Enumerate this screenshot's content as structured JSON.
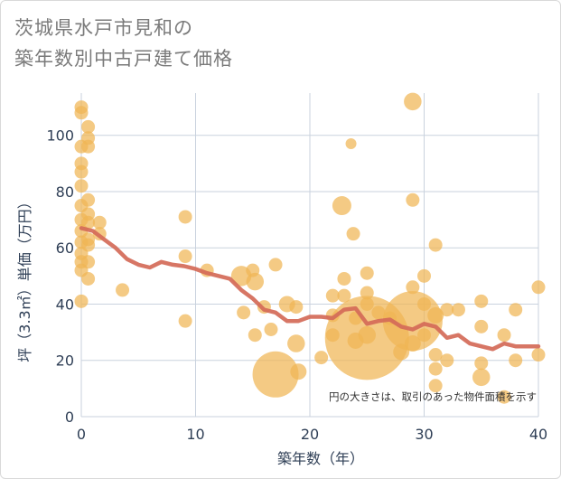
{
  "title_line1": "茨城県水戸市見和の",
  "title_line2": "築年数別中古戸建て価格",
  "colors": {
    "bubble": "#f0b555",
    "line": "#d46a58",
    "grid": "#c9d2de",
    "axis_text": "#2f3f56"
  },
  "chart_data": {
    "type": "scatter",
    "xlabel": "築年数（年）",
    "ylabel": "坪（3.3㎡）単価（万円）",
    "xlim": [
      0,
      40
    ],
    "ylim": [
      0,
      115
    ],
    "x_ticks": [
      0,
      10,
      20,
      30,
      40
    ],
    "y_ticks": [
      0,
      20,
      40,
      60,
      80,
      100
    ],
    "grid": true,
    "annotation": "円の大きさは、取引のあった物件面積を示す",
    "bubbles": [
      {
        "x": 0,
        "y": 110,
        "s": 1
      },
      {
        "x": 0,
        "y": 108,
        "s": 1
      },
      {
        "x": 0,
        "y": 96,
        "s": 1
      },
      {
        "x": 0,
        "y": 90,
        "s": 1
      },
      {
        "x": 0,
        "y": 87,
        "s": 1
      },
      {
        "x": 0,
        "y": 82,
        "s": 1
      },
      {
        "x": 0,
        "y": 75,
        "s": 1
      },
      {
        "x": 0,
        "y": 70,
        "s": 1
      },
      {
        "x": 0,
        "y": 66,
        "s": 1
      },
      {
        "x": 0,
        "y": 62,
        "s": 1
      },
      {
        "x": 0,
        "y": 58,
        "s": 1
      },
      {
        "x": 0,
        "y": 55,
        "s": 1
      },
      {
        "x": 0,
        "y": 52,
        "s": 1
      },
      {
        "x": 0,
        "y": 41,
        "s": 1
      },
      {
        "x": 0.6,
        "y": 103,
        "s": 1
      },
      {
        "x": 0.6,
        "y": 99,
        "s": 1
      },
      {
        "x": 0.6,
        "y": 96,
        "s": 1
      },
      {
        "x": 0.6,
        "y": 77,
        "s": 1
      },
      {
        "x": 0.6,
        "y": 72,
        "s": 1
      },
      {
        "x": 0.6,
        "y": 69,
        "s": 1
      },
      {
        "x": 0.6,
        "y": 63,
        "s": 1
      },
      {
        "x": 0.6,
        "y": 61,
        "s": 1
      },
      {
        "x": 0.6,
        "y": 55,
        "s": 1
      },
      {
        "x": 0.6,
        "y": 49,
        "s": 1
      },
      {
        "x": 1.6,
        "y": 69,
        "s": 1
      },
      {
        "x": 1.6,
        "y": 65,
        "s": 1
      },
      {
        "x": 3.6,
        "y": 45,
        "s": 1
      },
      {
        "x": 9.1,
        "y": 71,
        "s": 1
      },
      {
        "x": 9.1,
        "y": 57,
        "s": 1
      },
      {
        "x": 9.1,
        "y": 34,
        "s": 1
      },
      {
        "x": 11,
        "y": 52,
        "s": 1
      },
      {
        "x": 14,
        "y": 50,
        "s": 1.5
      },
      {
        "x": 14.2,
        "y": 37,
        "s": 1
      },
      {
        "x": 15,
        "y": 52,
        "s": 1
      },
      {
        "x": 15.2,
        "y": 48,
        "s": 1.3
      },
      {
        "x": 15.2,
        "y": 29,
        "s": 1
      },
      {
        "x": 16,
        "y": 39,
        "s": 1
      },
      {
        "x": 16.6,
        "y": 31,
        "s": 1
      },
      {
        "x": 17,
        "y": 15,
        "s": 3.4
      },
      {
        "x": 17,
        "y": 54,
        "s": 1
      },
      {
        "x": 18,
        "y": 40,
        "s": 1.2
      },
      {
        "x": 18.8,
        "y": 39,
        "s": 1
      },
      {
        "x": 18.8,
        "y": 26,
        "s": 1.3
      },
      {
        "x": 19,
        "y": 16,
        "s": 1.2
      },
      {
        "x": 21,
        "y": 21,
        "s": 1
      },
      {
        "x": 22,
        "y": 43,
        "s": 1
      },
      {
        "x": 22,
        "y": 36,
        "s": 1
      },
      {
        "x": 22,
        "y": 29,
        "s": 1
      },
      {
        "x": 22.8,
        "y": 75,
        "s": 1.4
      },
      {
        "x": 23,
        "y": 49,
        "s": 1
      },
      {
        "x": 23,
        "y": 43,
        "s": 1
      },
      {
        "x": 23.6,
        "y": 97,
        "s": 0.8
      },
      {
        "x": 23.8,
        "y": 65,
        "s": 1
      },
      {
        "x": 24,
        "y": 35,
        "s": 1
      },
      {
        "x": 24,
        "y": 27,
        "s": 1.2
      },
      {
        "x": 25,
        "y": 28,
        "s": 6.2
      },
      {
        "x": 25,
        "y": 51,
        "s": 1
      },
      {
        "x": 25,
        "y": 44,
        "s": 1
      },
      {
        "x": 25,
        "y": 40,
        "s": 1
      },
      {
        "x": 25,
        "y": 29,
        "s": 1.3
      },
      {
        "x": 26,
        "y": 37,
        "s": 1
      },
      {
        "x": 27,
        "y": 35,
        "s": 1
      },
      {
        "x": 28,
        "y": 23,
        "s": 1.2
      },
      {
        "x": 29,
        "y": 34,
        "s": 4.4
      },
      {
        "x": 29,
        "y": 112,
        "s": 1.3
      },
      {
        "x": 29,
        "y": 77,
        "s": 1
      },
      {
        "x": 29,
        "y": 46,
        "s": 1
      },
      {
        "x": 29,
        "y": 26,
        "s": 1.2
      },
      {
        "x": 30,
        "y": 50,
        "s": 1
      },
      {
        "x": 30,
        "y": 40,
        "s": 1
      },
      {
        "x": 30,
        "y": 29,
        "s": 1
      },
      {
        "x": 31,
        "y": 61,
        "s": 1
      },
      {
        "x": 31,
        "y": 36,
        "s": 1.2
      },
      {
        "x": 31,
        "y": 22,
        "s": 1
      },
      {
        "x": 31,
        "y": 17,
        "s": 1
      },
      {
        "x": 31,
        "y": 11,
        "s": 1
      },
      {
        "x": 32,
        "y": 38,
        "s": 1
      },
      {
        "x": 32,
        "y": 20,
        "s": 1
      },
      {
        "x": 33,
        "y": 38,
        "s": 1
      },
      {
        "x": 35,
        "y": 41,
        "s": 1
      },
      {
        "x": 35,
        "y": 32,
        "s": 1
      },
      {
        "x": 35,
        "y": 19,
        "s": 1
      },
      {
        "x": 35,
        "y": 14,
        "s": 1.3
      },
      {
        "x": 37,
        "y": 29,
        "s": 1
      },
      {
        "x": 37,
        "y": 7,
        "s": 1
      },
      {
        "x": 38,
        "y": 38,
        "s": 1
      },
      {
        "x": 38,
        "y": 20,
        "s": 1
      },
      {
        "x": 40,
        "y": 46,
        "s": 1
      },
      {
        "x": 40,
        "y": 22,
        "s": 1
      }
    ],
    "trend": {
      "x": [
        0,
        1,
        2,
        3,
        4,
        5,
        6,
        7,
        8,
        9,
        10,
        11,
        12,
        13,
        14,
        15,
        16,
        17,
        18,
        19,
        20,
        21,
        22,
        23,
        24,
        25,
        26,
        27,
        28,
        29,
        30,
        31,
        32,
        33,
        34,
        35,
        36,
        37,
        38,
        39,
        40
      ],
      "y": [
        67,
        66,
        63,
        60,
        56,
        54,
        53,
        55,
        54,
        53.5,
        52.5,
        51,
        50,
        49,
        45,
        42,
        38,
        37,
        34,
        34,
        35.5,
        35.5,
        35,
        38,
        38.5,
        33,
        34,
        34.5,
        32,
        31,
        33,
        32,
        28,
        29,
        26,
        25,
        24,
        26,
        25,
        25,
        25
      ]
    }
  }
}
